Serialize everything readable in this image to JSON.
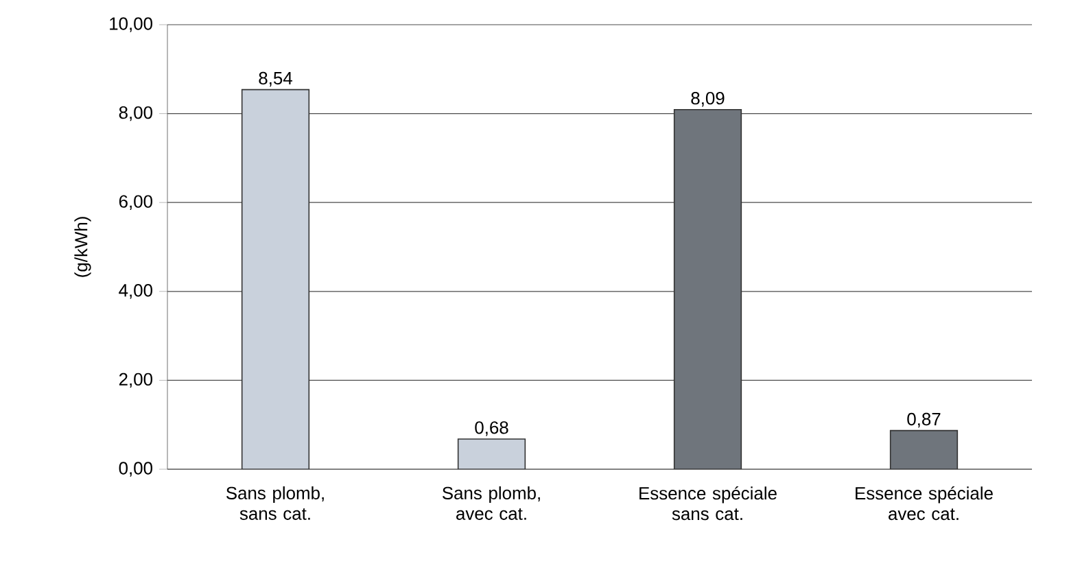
{
  "chart_data": {
    "type": "bar",
    "ylabel": "(g/kWh)",
    "categories": [
      "Sans plomb, sans cat.",
      "Sans plomb, avec cat.",
      "Essence spéciale sans cat.",
      "Essence spéciale avec cat."
    ],
    "values": [
      8.54,
      0.68,
      8.09,
      0.87
    ],
    "value_labels": [
      "8,54",
      "0,68",
      "8,09",
      "0,87"
    ],
    "colors": [
      "#c9d1dc",
      "#c9d1dc",
      "#6f757c",
      "#6f757c"
    ],
    "ylim": [
      0,
      10
    ],
    "yticks": [
      {
        "value": 0,
        "label": "0,00"
      },
      {
        "value": 2,
        "label": "2,00"
      },
      {
        "value": 4,
        "label": "4,00"
      },
      {
        "value": 6,
        "label": "6,00"
      },
      {
        "value": 8,
        "label": "8,00"
      },
      {
        "value": 10,
        "label": "10,00"
      }
    ],
    "grid": "y"
  }
}
